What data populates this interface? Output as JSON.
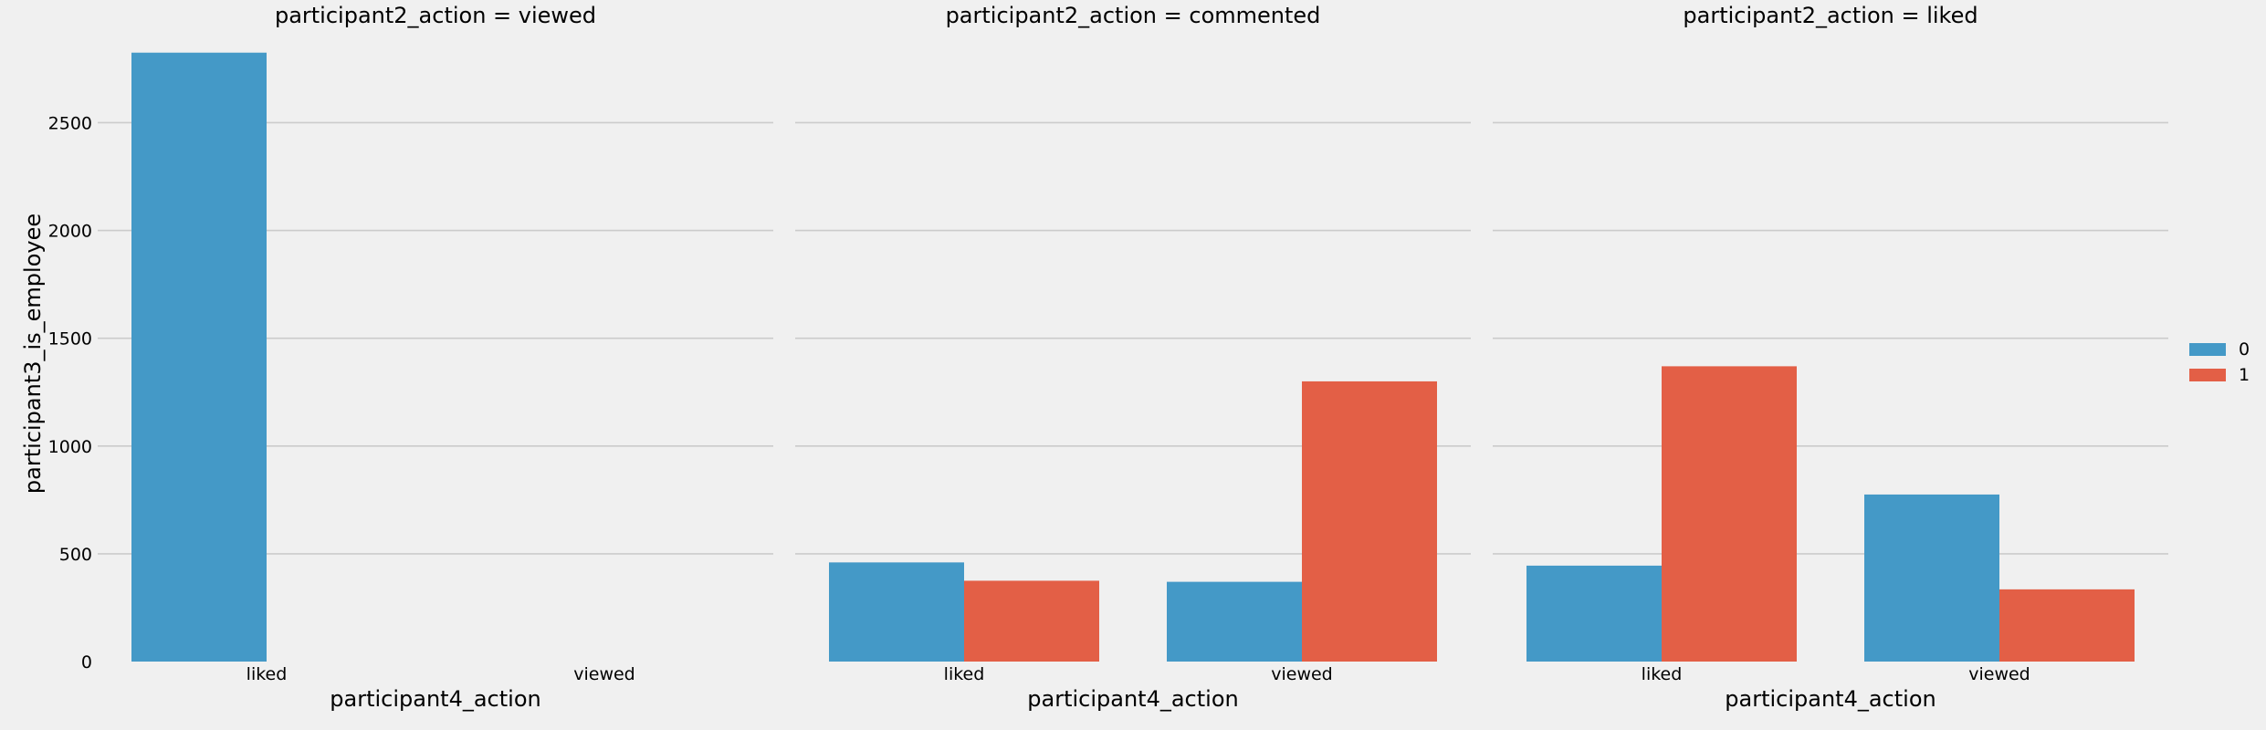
{
  "chart_data": {
    "type": "bar",
    "ylabel": "participant3_is_employee",
    "ylim": [
      0,
      2900
    ],
    "yticks": [
      0,
      500,
      1000,
      1500,
      2000,
      2500
    ],
    "grid": true,
    "legend": {
      "placement": "right",
      "entries": [
        {
          "label": "0",
          "color": "#4499c7"
        },
        {
          "label": "1",
          "color": "#e35f46"
        }
      ]
    },
    "series_names": [
      "0",
      "1"
    ],
    "panels": [
      {
        "title": "participant2_action = viewed",
        "xlabel": "participant4_action",
        "categories": [
          "liked",
          "viewed"
        ],
        "series": [
          {
            "name": "0",
            "values": [
              2825,
              null
            ]
          },
          {
            "name": "1",
            "values": [
              null,
              null
            ]
          }
        ]
      },
      {
        "title": "participant2_action = commented",
        "xlabel": "participant4_action",
        "categories": [
          "liked",
          "viewed"
        ],
        "series": [
          {
            "name": "0",
            "values": [
              460,
              370
            ]
          },
          {
            "name": "1",
            "values": [
              375,
              1300
            ]
          }
        ]
      },
      {
        "title": "participant2_action = liked",
        "xlabel": "participant4_action",
        "categories": [
          "liked",
          "viewed"
        ],
        "series": [
          {
            "name": "0",
            "values": [
              445,
              775
            ]
          },
          {
            "name": "1",
            "values": [
              1370,
              335
            ]
          }
        ]
      }
    ]
  }
}
